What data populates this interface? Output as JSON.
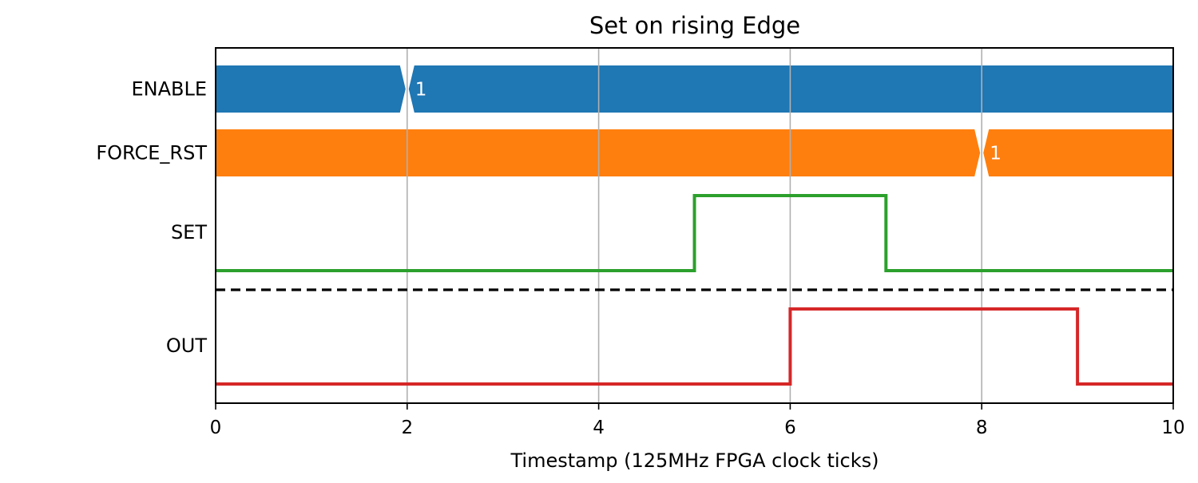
{
  "chart_data": {
    "type": "timing-diagram",
    "title": "Set on rising Edge",
    "xlabel": "Timestamp (125MHz FPGA clock ticks)",
    "xlim": [
      0,
      10
    ],
    "xticks": [
      "0",
      "2",
      "4",
      "6",
      "8",
      "10"
    ],
    "grid": "vertical",
    "signals": [
      {
        "name": "ENABLE",
        "kind": "bus",
        "color": "#1f77b4",
        "transitions": [
          {
            "x": 2,
            "label": "1"
          }
        ]
      },
      {
        "name": "FORCE_RST",
        "kind": "bus",
        "color": "#ff7f0e",
        "transitions": [
          {
            "x": 8,
            "label": "1"
          }
        ]
      },
      {
        "name": "SET",
        "kind": "digital",
        "color": "#2ca02c",
        "steps": [
          [
            0,
            0
          ],
          [
            5,
            1
          ],
          [
            7,
            0
          ],
          [
            10,
            0
          ]
        ]
      },
      {
        "name": "OUT",
        "kind": "digital",
        "color": "#d62728",
        "steps": [
          [
            0,
            0
          ],
          [
            6,
            1
          ],
          [
            9,
            0
          ],
          [
            10,
            0
          ]
        ]
      }
    ],
    "separator": {
      "after": "SET",
      "style": "dashed",
      "color": "#000000"
    }
  }
}
